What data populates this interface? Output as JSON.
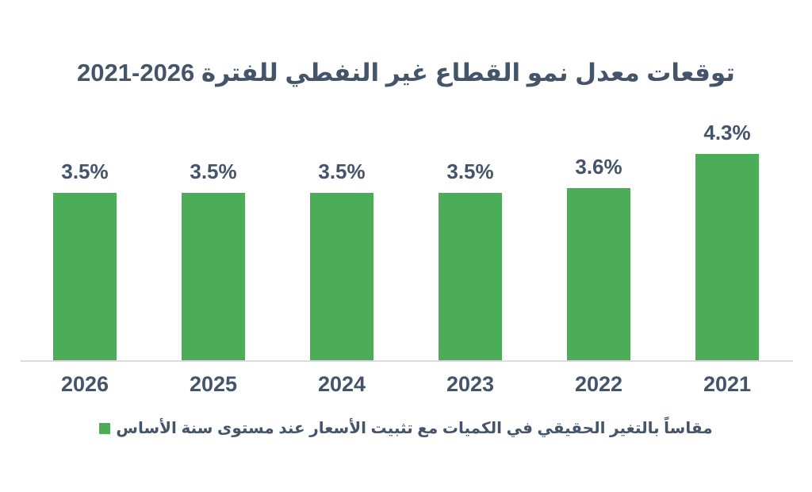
{
  "chart_data": {
    "type": "bar",
    "title": "توقعات معدل نمو القطاع غير النفطي للفترة 2026-2021",
    "categories": [
      "2026",
      "2025",
      "2024",
      "2023",
      "2022",
      "2021"
    ],
    "values": [
      3.5,
      3.5,
      3.5,
      3.5,
      3.6,
      4.3
    ],
    "data_labels": [
      "3.5%",
      "3.5%",
      "3.5%",
      "3.5%",
      "3.6%",
      "4.3%"
    ],
    "xlabel": "",
    "ylabel": "",
    "ylim": [
      0,
      5
    ],
    "grid": false,
    "y_axis_visible": false,
    "legend_position": "bottom-center",
    "legend": {
      "label": "مقاساً بالتغير الحقيقي في الكميات مع تثبيت الأسعار عند مستوى سنة الأساس",
      "marker": "green-square"
    },
    "colors": {
      "bar": "#4BAD58",
      "text": "#44546A",
      "axis_line": "#DBDBDB",
      "background": "#FFFFFF"
    }
  }
}
